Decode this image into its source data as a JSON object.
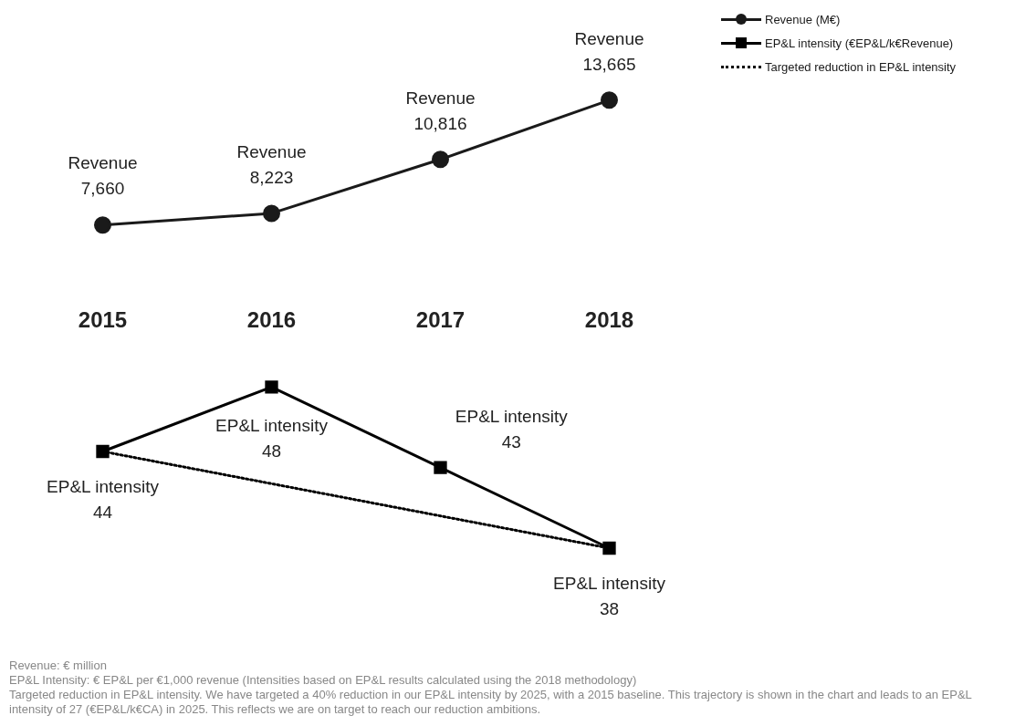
{
  "chart_data": [
    {
      "type": "line",
      "categories": [
        "2015",
        "2016",
        "2017",
        "2018"
      ],
      "series": [
        {
          "name": "Revenue (M€)",
          "color": "#1a1a1a",
          "marker": "circle",
          "values": [
            7660,
            8223,
            10816,
            13665
          ],
          "value_labels": [
            "Revenue\n7,660",
            "Revenue\n8,223",
            "Revenue\n10,816",
            "Revenue\n13,665"
          ]
        }
      ],
      "grid": false,
      "legend": "top right",
      "tick_labels": "x"
    },
    {
      "type": "line",
      "categories": [
        "2015",
        "2016",
        "2017",
        "2018"
      ],
      "series": [
        {
          "name": "EP&L intensity (€EP&L/k€Revenue)",
          "color": "#000000",
          "marker": "square",
          "values": [
            44,
            48,
            43,
            38
          ],
          "value_labels": [
            "EP&L intensity\n44",
            "EP&L intensity\n48",
            "EP&L intensity\n43",
            "EP&L intensity\n38"
          ]
        },
        {
          "name": "Targeted reduction in EP&L intensity",
          "color": "#000000",
          "marker": "none",
          "line_style": "dotted",
          "values": [
            44,
            null,
            null,
            38
          ]
        }
      ],
      "grid": false,
      "legend": "top right",
      "tick_labels": false,
      "annotations": [
        "Revenue: € million",
        "EP&L Intensity: € EP&L per €1,000 revenue (Intensities based on EP&L results calculated using the 2018 methodology)",
        "Targeted reduction in EP&L intensity. We have targeted a 40% reduction in our EP&L intensity by 2025, with a 2015 baseline. This trajectory is shown in the chart and leads to an EP&L intensity of 27 (€EP&L/k€CA) in 2025. This reflects we are on target to reach our reduction ambitions."
      ]
    }
  ]
}
